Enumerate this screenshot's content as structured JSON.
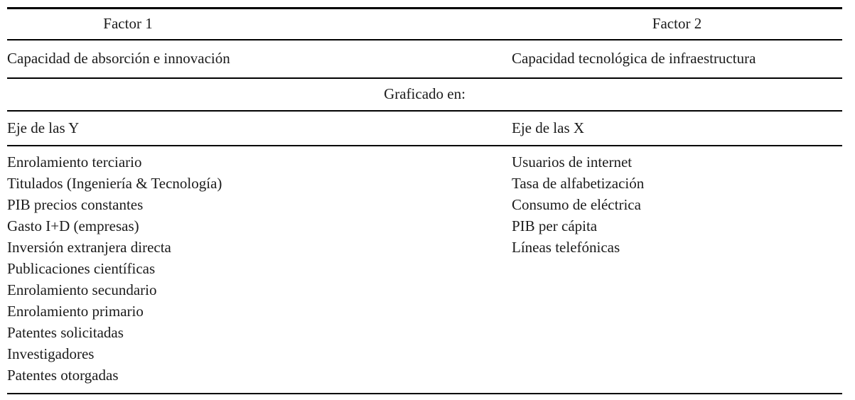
{
  "table": {
    "header": {
      "col1": "Factor 1",
      "col2": "Factor 2"
    },
    "factor_names": {
      "col1": "Capacidad de absorción e innovación",
      "col2": "Capacidad tecnológica de infraestructura"
    },
    "graficado_label": "Graficado en:",
    "axes": {
      "col1": "Eje de las Y",
      "col2": "Eje de las X"
    },
    "variables": {
      "factor1": [
        "Enrolamiento terciario",
        "Titulados (Ingeniería & Tecnología)",
        "PIB precios constantes",
        "Gasto I+D (empresas)",
        "Inversión extranjera directa",
        "Publicaciones científicas",
        "Enrolamiento secundario",
        "Enrolamiento primario",
        "Patentes solicitadas",
        "Investigadores",
        "Patentes otorgadas"
      ],
      "factor2": [
        "Usuarios de internet",
        "Tasa de alfabetización",
        "Consumo de eléctrica",
        "PIB per cápita",
        "Líneas telefónicas"
      ]
    }
  },
  "colors": {
    "text": "#1b1b1b",
    "rule": "#000000",
    "background": "#ffffff"
  }
}
